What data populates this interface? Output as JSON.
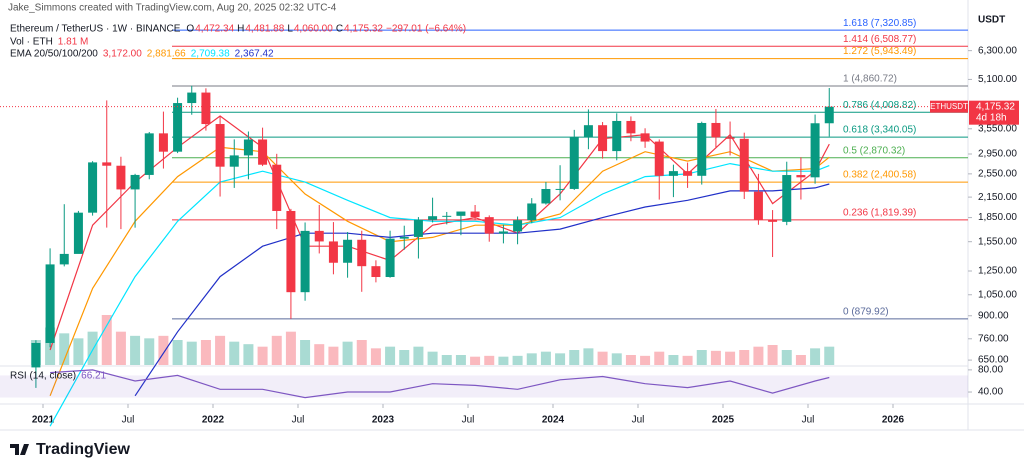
{
  "header": "Jake_Simmons created with TradingView.com, Aug 20, 2025 02:32 UTC-4",
  "chart_data": {
    "type": "candlestick",
    "title": "Ethereum / TetherUS · 1W · BINANCE",
    "quote": [
      {
        "key": "O",
        "value": "4,472.34"
      },
      {
        "key": "H",
        "value": "4,481.88"
      },
      {
        "key": "L",
        "value": "4,060.00"
      },
      {
        "key": "C",
        "value": "4,175.32"
      }
    ],
    "change": "−297.01 (−6.64%)",
    "volume_legend": {
      "name": "Vol · ETH",
      "value": "1.81 M"
    },
    "currency": "USDT",
    "log_scale": true,
    "up_color": "#089981",
    "down_color": "#f23645",
    "x": [
      "2020-12",
      "2021-01",
      "2021-02",
      "2021-03",
      "2021-04",
      "2021-05",
      "2021-06",
      "2021-07",
      "2021-08",
      "2021-09",
      "2021-10",
      "2021-11",
      "2021-12",
      "2022-01",
      "2022-02",
      "2022-03",
      "2022-04",
      "2022-05",
      "2022-06",
      "2022-07",
      "2022-08",
      "2022-09",
      "2022-10",
      "2022-11",
      "2022-12",
      "2023-01",
      "2023-02",
      "2023-03",
      "2023-04",
      "2023-05",
      "2023-06",
      "2023-07",
      "2023-08",
      "2023-09",
      "2023-10",
      "2023-11",
      "2023-12",
      "2024-01",
      "2024-02",
      "2024-03",
      "2024-04",
      "2024-05",
      "2024-06",
      "2024-07",
      "2024-08",
      "2024-09",
      "2024-10",
      "2024-11",
      "2024-12",
      "2025-01",
      "2025-02",
      "2025-03",
      "2025-04",
      "2025-05",
      "2025-06",
      "2025-07",
      "2025-08"
    ],
    "open": [
      616,
      737,
      1312,
      1417,
      1918,
      2774,
      2707,
      2275,
      2530,
      3433,
      3001,
      4288,
      4631,
      3676,
      2688,
      2920,
      3282,
      2727,
      1942,
      1070,
      1678,
      1553,
      1328,
      1572,
      1295,
      1196,
      1585,
      1605,
      1821,
      1869,
      1874,
      1934,
      1856,
      1645,
      1671,
      1815,
      2052,
      2282,
      2283,
      3340,
      3645,
      3014,
      3760,
      3433,
      3232,
      2513,
      2602,
      2514,
      3705,
      3332,
      3298,
      2237,
      1822,
      1793,
      2528,
      2486,
      3697
    ],
    "high": [
      752,
      1476,
      2041,
      1943,
      2799,
      4372,
      2891,
      2551,
      3467,
      4027,
      4460,
      4868,
      4778,
      3900,
      3285,
      3480,
      3580,
      2954,
      1972,
      1785,
      2030,
      1790,
      1664,
      1680,
      1352,
      1680,
      1743,
      1857,
      2141,
      1928,
      1930,
      2029,
      1880,
      1754,
      1865,
      2134,
      2403,
      2717,
      3522,
      4093,
      3730,
      3977,
      3887,
      3563,
      3283,
      2728,
      2770,
      3740,
      4107,
      3744,
      3450,
      2550,
      1955,
      2788,
      2880,
      3941,
      4790
    ],
    "low": [
      530,
      714,
      1293,
      1460,
      1877,
      1719,
      1700,
      1718,
      2451,
      2651,
      2970,
      3935,
      3503,
      2159,
      2300,
      2450,
      2700,
      1700,
      880,
      1005,
      1422,
      1220,
      1190,
      1073,
      1150,
      1190,
      1461,
      1370,
      1785,
      1760,
      1626,
      1825,
      1550,
      1531,
      1521,
      1775,
      2035,
      2100,
      2266,
      3056,
      2852,
      2817,
      3240,
      3087,
      2111,
      2150,
      2300,
      2357,
      3100,
      2920,
      2120,
      1755,
      1385,
      1750,
      2112,
      2373,
      3355
    ],
    "close": [
      737,
      1312,
      1417,
      1918,
      2774,
      2707,
      2275,
      2530,
      3433,
      3001,
      4288,
      4631,
      3676,
      2688,
      2920,
      3282,
      2727,
      1942,
      1070,
      1678,
      1553,
      1328,
      1572,
      1295,
      1196,
      1585,
      1605,
      1821,
      1869,
      1874,
      1934,
      1856,
      1645,
      1671,
      1815,
      2052,
      2282,
      2283,
      3340,
      3645,
      3014,
      3760,
      3433,
      3232,
      2513,
      2602,
      2514,
      3705,
      3332,
      3298,
      2237,
      1822,
      1793,
      2528,
      2486,
      3697,
      4175
    ],
    "ylim": [
      627,
      9136
    ],
    "yticks": [
      {
        "value": 6300,
        "label": "6,300.00"
      },
      {
        "value": 5100,
        "label": "5,100.00"
      },
      {
        "value": 3550,
        "label": "3,550.00"
      },
      {
        "value": 2950,
        "label": "2,950.00"
      },
      {
        "value": 2550,
        "label": "2,550.00"
      },
      {
        "value": 2150,
        "label": "2,150.00"
      },
      {
        "value": 1850,
        "label": "1,850.00"
      },
      {
        "value": 1550,
        "label": "1,550.00"
      },
      {
        "value": 1250,
        "label": "1,250.00"
      },
      {
        "value": 1050,
        "label": "1,050.00"
      },
      {
        "value": 900,
        "label": "900.00"
      },
      {
        "value": 760,
        "label": "760.00"
      },
      {
        "value": 650,
        "label": "650.00"
      }
    ],
    "xticks": [
      {
        "value": "2021-01",
        "label": "2021"
      },
      {
        "value": "2021-07",
        "label": "Jul"
      },
      {
        "value": "2022-01",
        "label": "2022"
      },
      {
        "value": "2022-07",
        "label": "Jul"
      },
      {
        "value": "2023-01",
        "label": "2023"
      },
      {
        "value": "2023-07",
        "label": "Jul"
      },
      {
        "value": "2024-01",
        "label": "2024"
      },
      {
        "value": "2024-07",
        "label": "Jul"
      },
      {
        "value": "2025-01",
        "label": "2025"
      },
      {
        "value": "2025-07",
        "label": "Jul"
      },
      {
        "value": "2026-01",
        "label": "2026"
      }
    ],
    "last_price": {
      "symbol": "ETHUSDT",
      "value": 4175.32,
      "label": "4,175.32",
      "countdown": "4d 18h"
    },
    "fib": [
      {
        "value": 7320.85,
        "label": "1.618 (7,320.85)",
        "color": "#2962ff"
      },
      {
        "value": 6508.77,
        "label": "1.414 (6,508.77)",
        "color": "#f23645"
      },
      {
        "value": 5943.49,
        "label": "1.272 (5,943.49)",
        "color": "#ff9800"
      },
      {
        "value": 4860.72,
        "label": "1 (4,860.72)",
        "color": "#787b86"
      },
      {
        "value": 4008.82,
        "label": "0.786 (4,008.82)",
        "color": "#089981"
      },
      {
        "value": 3340.05,
        "label": "0.618 (3,340.05)",
        "color": "#089981"
      },
      {
        "value": 2870.32,
        "label": "0.5 (2,870.32)",
        "color": "#4caf50"
      },
      {
        "value": 2400.58,
        "label": "0.382 (2,400.58)",
        "color": "#ff9800"
      },
      {
        "value": 1819.39,
        "label": "0.236 (1,819.39)",
        "color": "#f23645"
      },
      {
        "value": 879.92,
        "label": "0 (879.92)",
        "color": "#5b6b9b"
      }
    ],
    "ema": {
      "name": "EMA 20/50/100/200",
      "x": [
        "2021-01",
        "2021-04",
        "2021-07",
        "2021-10",
        "2022-01",
        "2022-04",
        "2022-07",
        "2022-10",
        "2023-01",
        "2023-04",
        "2023-07",
        "2023-10",
        "2024-01",
        "2024-04",
        "2024-07",
        "2024-10",
        "2025-01",
        "2025-04",
        "2025-07",
        "2025-08"
      ],
      "series": [
        {
          "color": "#f23645",
          "label": "3,172.00",
          "values": [
            700,
            1750,
            2400,
            3100,
            3900,
            3100,
            1500,
            1500,
            1350,
            1750,
            1850,
            1650,
            2200,
            3300,
            3400,
            2550,
            3400,
            2050,
            2600,
            3172
          ]
        },
        {
          "color": "#ff9800",
          "label": "2,881.66",
          "values": [
            500,
            1100,
            1800,
            2500,
            3100,
            3000,
            2200,
            1800,
            1550,
            1600,
            1750,
            1750,
            1900,
            2600,
            3000,
            2800,
            3000,
            2600,
            2650,
            2881.66
          ]
        },
        {
          "color": "#00e5ff",
          "label": "2,709.38",
          "values": [
            400,
            700,
            1200,
            1800,
            2400,
            2600,
            2400,
            2100,
            1850,
            1800,
            1800,
            1750,
            1850,
            2200,
            2500,
            2550,
            2750,
            2600,
            2600,
            2709.38
          ]
        },
        {
          "color": "#2130c8",
          "label": "2,367.42",
          "values": [
            null,
            null,
            500,
            800,
            1200,
            1500,
            1650,
            1650,
            1600,
            1650,
            1650,
            1650,
            1700,
            1850,
            2000,
            2100,
            2250,
            2250,
            2300,
            2367.42
          ]
        }
      ]
    },
    "volume": {
      "lim": [
        0,
        60
      ],
      "values": [
        30,
        45,
        38,
        32,
        40,
        60,
        40,
        35,
        32,
        35,
        30,
        28,
        30,
        35,
        28,
        25,
        22,
        35,
        40,
        30,
        25,
        22,
        28,
        30,
        20,
        22,
        18,
        22,
        16,
        12,
        12,
        10,
        11,
        10,
        11,
        14,
        16,
        14,
        18,
        20,
        16,
        14,
        12,
        11,
        16,
        12,
        11,
        18,
        17,
        16,
        18,
        22,
        24,
        18,
        12,
        20,
        22
      ]
    },
    "rsi": {
      "name": "RSI (14, close)",
      "color": "#7e57c2",
      "ylim": [
        22,
        87
      ],
      "yticks": [
        {
          "value": 80,
          "label": "80.00"
        },
        {
          "value": 40,
          "label": "40.00"
        }
      ],
      "x": [
        "2021-01",
        "2021-04",
        "2021-07",
        "2021-10",
        "2022-01",
        "2022-04",
        "2022-07",
        "2022-10",
        "2023-01",
        "2023-04",
        "2023-07",
        "2023-10",
        "2024-01",
        "2024-04",
        "2024-07",
        "2024-10",
        "2025-01",
        "2025-04",
        "2025-07",
        "2025-08"
      ],
      "values": [
        75,
        80,
        60,
        70,
        45,
        45,
        30,
        40,
        40,
        55,
        52,
        45,
        62,
        68,
        55,
        48,
        60,
        38,
        60,
        66.21
      ]
    }
  },
  "footer": "TradingView"
}
